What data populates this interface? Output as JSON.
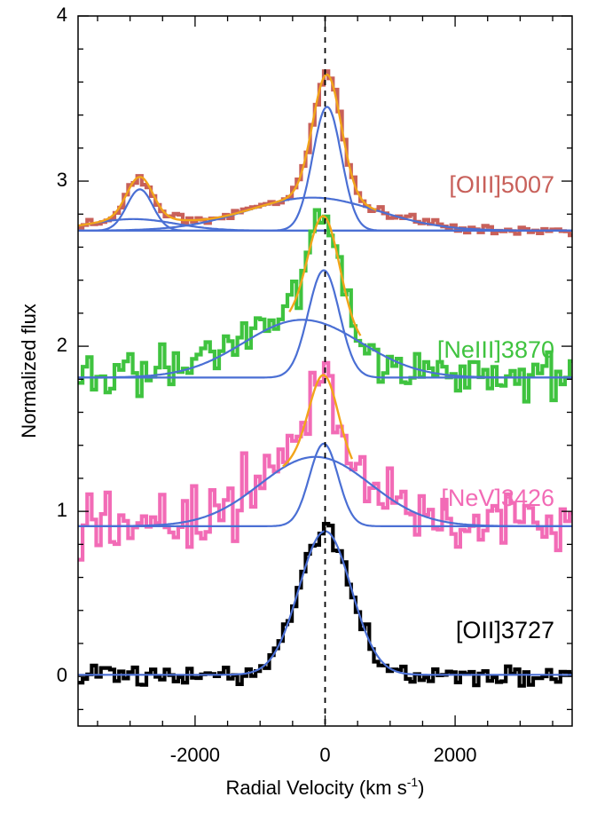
{
  "chart_data": {
    "type": "line",
    "title": "",
    "xlabel": "Radial Velocity (km s",
    "xlabel_superscript": "-1",
    "xlabel_suffix": ")",
    "ylabel": "Normalized flux",
    "xlim": [
      -3800,
      3800
    ],
    "ylim": [
      -0.3,
      4.0
    ],
    "xticks": [
      {
        "value": -2000,
        "label": "-2000"
      },
      {
        "value": 0,
        "label": "0"
      },
      {
        "value": 2000,
        "label": "2000"
      }
    ],
    "yticks": [
      {
        "value": 0,
        "label": "0"
      },
      {
        "value": 1,
        "label": "1"
      },
      {
        "value": 2,
        "label": "2"
      },
      {
        "value": 3,
        "label": "3"
      },
      {
        "value": 4,
        "label": "4"
      }
    ],
    "reference_line": {
      "x": 0,
      "style": "dashed",
      "color": "#000000"
    },
    "fit_colors": {
      "component": "#4a6fd4",
      "total": "#f2a51a"
    },
    "series": [
      {
        "name": "[OIII]5007",
        "label": "[OIII]5007",
        "color": "#c8605a",
        "baseline": 2.7,
        "label_y": 2.97,
        "components": [
          {
            "amp": 0.75,
            "center": 30,
            "sigma": 220
          },
          {
            "amp": 0.2,
            "center": -200,
            "sigma": 1000
          },
          {
            "amp": 0.25,
            "center": -2850,
            "sigma": 200
          },
          {
            "amp": 0.07,
            "center": -2950,
            "sigma": 650
          }
        ],
        "noise": 0.015,
        "fit_range": [
          -3800,
          800
        ]
      },
      {
        "name": "[NeIII]3870",
        "label": "[NeIII]3870",
        "color": "#3fc33f",
        "baseline": 1.81,
        "label_y": 1.97,
        "components": [
          {
            "amp": 0.65,
            "center": -20,
            "sigma": 240
          },
          {
            "amp": 0.35,
            "center": -350,
            "sigma": 900
          }
        ],
        "noise": 0.07,
        "fit_range": [
          -550,
          550
        ]
      },
      {
        "name": "[NeV]3426",
        "label": "[NeV]3426",
        "color": "#f26bb6",
        "baseline": 0.91,
        "label_y": 1.07,
        "components": [
          {
            "amp": 0.5,
            "center": -20,
            "sigma": 220
          },
          {
            "amp": 0.42,
            "center": -150,
            "sigma": 850
          }
        ],
        "noise": 0.1,
        "fit_range": [
          -650,
          420
        ]
      },
      {
        "name": "[OII]3727",
        "label": "[OII]3727",
        "color": "#000000",
        "baseline": 0.01,
        "label_y": 0.27,
        "components": [
          {
            "amp": 0.87,
            "center": 0,
            "sigma": 400
          }
        ],
        "noise": 0.03,
        "fit_range": null
      }
    ]
  }
}
